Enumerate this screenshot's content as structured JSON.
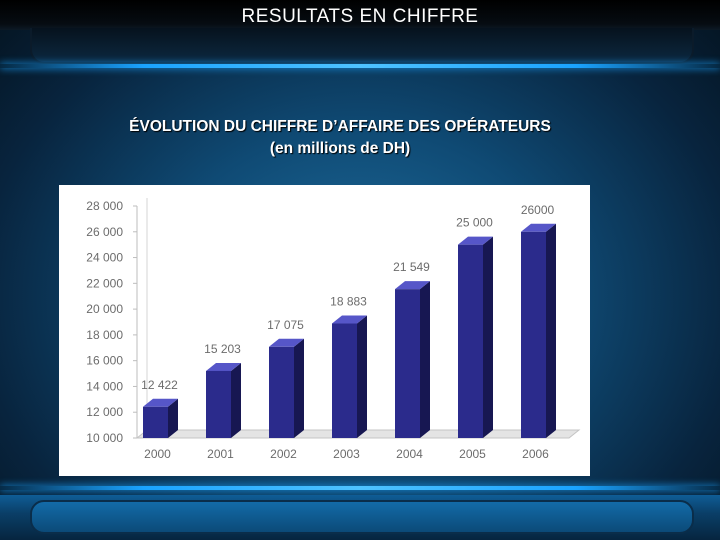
{
  "slide": {
    "title": "RESULTATS EN CHIFFRE"
  },
  "colors": {
    "bar_front": "#2b2b8c",
    "bar_side": "#171752",
    "bar_top": "#5656c8",
    "axis_text": "#6c6c6c",
    "accent": "#1aa3ff"
  },
  "chart_data": {
    "type": "bar",
    "title": "ÉVOLUTION DU CHIFFRE D’AFFAIRE DES OPÉRATEURS",
    "subtitle": "(en millions de DH)",
    "xlabel": "",
    "ylabel": "",
    "categories": [
      "2000",
      "2001",
      "2002",
      "2003",
      "2004",
      "2005",
      "2006"
    ],
    "values": [
      12422,
      15203,
      17075,
      18883,
      21549,
      25000,
      26000
    ],
    "data_labels": [
      "12 422",
      "15 203",
      "17 075",
      "18 883",
      "21 549",
      "25 000",
      "26000"
    ],
    "ylim": [
      10000,
      28000
    ],
    "yticks": [
      10000,
      12000,
      14000,
      16000,
      18000,
      20000,
      22000,
      24000,
      26000,
      28000
    ],
    "ytick_labels": [
      "10 000",
      "12 000",
      "14 000",
      "16 000",
      "18 000",
      "20 000",
      "22 000",
      "24 000",
      "26 000",
      "28 000"
    ],
    "grid": false,
    "legend": "none",
    "style": "3d-bar"
  }
}
